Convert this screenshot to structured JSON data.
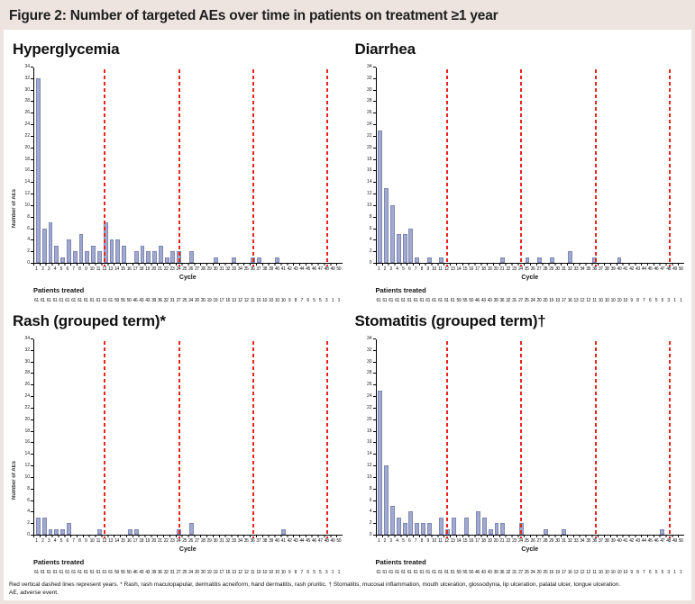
{
  "figure": {
    "title": "Figure 2: Number of targeted AEs over time in patients on treatment ≥1 year",
    "footnote_line1": "Red vertical dashed lines represent years. * Rash, rash maculopapular, dermatitis acneiform, hand dermatitis, rash pruritic. † Stomatitis, mucosal inflammation, mouth ulceration, glossodynia, lip ulceration, palatal ulcer, tongue ulceration.",
    "footnote_line2": "AE, adverse event."
  },
  "colors": {
    "header_bg": "#ede4e0",
    "bar_fill": "#a2a9ce",
    "bar_border": "#7f88b4",
    "year_line_red": "#e8251d"
  },
  "axis": {
    "ylabel": "Number of AEs",
    "xlabel": "Cycle",
    "ymax": 34,
    "ytick_step": 2,
    "cycles": 50,
    "year_line_cycles": [
      11.8,
      23.9,
      36.0,
      48.0
    ],
    "patients_label": "Patients treated"
  },
  "patients_treated": [
    61,
    61,
    61,
    61,
    61,
    61,
    61,
    61,
    61,
    61,
    61,
    61,
    61,
    59,
    55,
    50,
    46,
    43,
    43,
    39,
    36,
    32,
    31,
    27,
    25,
    24,
    20,
    20,
    19,
    19,
    17,
    16,
    13,
    12,
    12,
    11,
    10,
    10,
    10,
    10,
    10,
    9,
    8,
    7,
    6,
    5,
    5,
    3,
    1,
    1
  ],
  "chart_data": [
    {
      "type": "bar",
      "title": "Hyperglycemia",
      "ylabel": "Number of AEs",
      "xlabel": "Cycle",
      "ylim": [
        0,
        34
      ],
      "x": [
        1,
        2,
        3,
        4,
        5,
        6,
        7,
        8,
        9,
        10,
        11,
        12,
        13,
        14,
        15,
        16,
        17,
        18,
        19,
        20,
        21,
        22,
        23,
        24,
        25,
        26,
        27,
        28,
        29,
        30,
        31,
        32,
        33,
        34,
        35,
        36,
        37,
        38,
        39,
        40,
        41,
        42,
        43,
        44,
        45,
        46,
        47,
        48,
        49,
        50
      ],
      "values": [
        32,
        6,
        7,
        3,
        1,
        4,
        2,
        5,
        2,
        3,
        2,
        7,
        4,
        4,
        3,
        0,
        2,
        3,
        2,
        2,
        3,
        1,
        2,
        2,
        0,
        2,
        0,
        0,
        0,
        1,
        0,
        0,
        1,
        0,
        0,
        1,
        1,
        0,
        0,
        1,
        0,
        0,
        0,
        0,
        0,
        0,
        0,
        0,
        0,
        0
      ]
    },
    {
      "type": "bar",
      "title": "Diarrhea",
      "ylabel": "",
      "xlabel": "Cycle",
      "ylim": [
        0,
        34
      ],
      "x": [
        1,
        2,
        3,
        4,
        5,
        6,
        7,
        8,
        9,
        10,
        11,
        12,
        13,
        14,
        15,
        16,
        17,
        18,
        19,
        20,
        21,
        22,
        23,
        24,
        25,
        26,
        27,
        28,
        29,
        30,
        31,
        32,
        33,
        34,
        35,
        36,
        37,
        38,
        39,
        40,
        41,
        42,
        43,
        44,
        45,
        46,
        47,
        48,
        49,
        50
      ],
      "values": [
        23,
        13,
        10,
        5,
        5,
        6,
        1,
        0,
        1,
        0,
        1,
        0,
        0,
        0,
        0,
        0,
        0,
        0,
        0,
        0,
        1,
        0,
        0,
        0,
        1,
        0,
        1,
        0,
        1,
        0,
        0,
        2,
        0,
        0,
        0,
        1,
        0,
        0,
        0,
        1,
        0,
        0,
        0,
        0,
        0,
        0,
        0,
        0,
        0,
        0
      ]
    },
    {
      "type": "bar",
      "title": "Rash (grouped term)*",
      "ylabel": "Number of AEs",
      "xlabel": "Cycle",
      "ylim": [
        0,
        34
      ],
      "x": [
        1,
        2,
        3,
        4,
        5,
        6,
        7,
        8,
        9,
        10,
        11,
        12,
        13,
        14,
        15,
        16,
        17,
        18,
        19,
        20,
        21,
        22,
        23,
        24,
        25,
        26,
        27,
        28,
        29,
        30,
        31,
        32,
        33,
        34,
        35,
        36,
        37,
        38,
        39,
        40,
        41,
        42,
        43,
        44,
        45,
        46,
        47,
        48,
        49,
        50
      ],
      "values": [
        3,
        3,
        1,
        1,
        1,
        2,
        0,
        0,
        0,
        0,
        1,
        0,
        0,
        0,
        0,
        1,
        1,
        0,
        0,
        0,
        0,
        0,
        0,
        1,
        0,
        2,
        0,
        0,
        0,
        0,
        0,
        0,
        0,
        0,
        0,
        0,
        0,
        0,
        0,
        0,
        1,
        0,
        0,
        0,
        0,
        0,
        0,
        0,
        0,
        0
      ]
    },
    {
      "type": "bar",
      "title": "Stomatitis (grouped term)†",
      "ylabel": "",
      "xlabel": "Cycle",
      "ylim": [
        0,
        34
      ],
      "x": [
        1,
        2,
        3,
        4,
        5,
        6,
        7,
        8,
        9,
        10,
        11,
        12,
        13,
        14,
        15,
        16,
        17,
        18,
        19,
        20,
        21,
        22,
        23,
        24,
        25,
        26,
        27,
        28,
        29,
        30,
        31,
        32,
        33,
        34,
        35,
        36,
        37,
        38,
        39,
        40,
        41,
        42,
        43,
        44,
        45,
        46,
        47,
        48,
        49,
        50
      ],
      "values": [
        25,
        12,
        5,
        3,
        2,
        4,
        2,
        2,
        2,
        0,
        3,
        1,
        3,
        0,
        3,
        0,
        4,
        3,
        1,
        2,
        2,
        0,
        0,
        2,
        0,
        0,
        0,
        1,
        0,
        0,
        1,
        0,
        0,
        0,
        0,
        0,
        0,
        0,
        0,
        0,
        0,
        0,
        0,
        0,
        0,
        0,
        1,
        0,
        0,
        0
      ]
    }
  ]
}
